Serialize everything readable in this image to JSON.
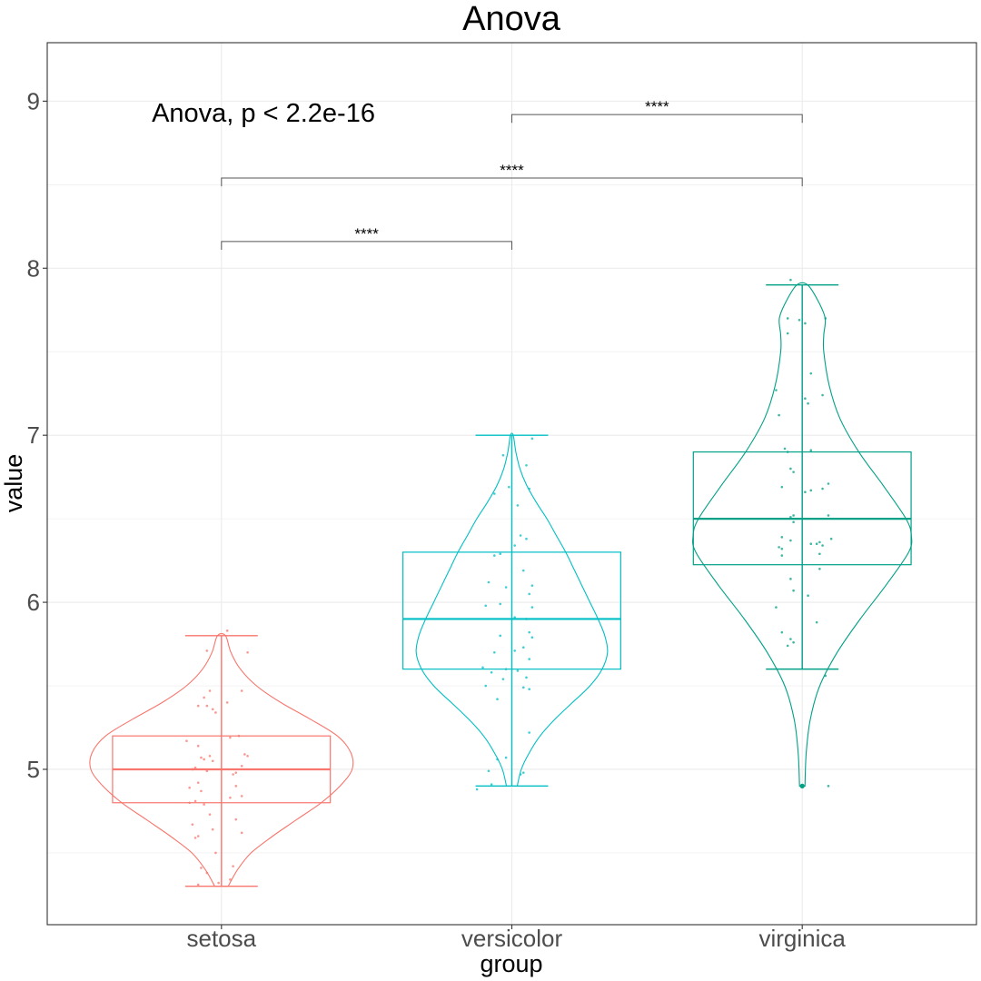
{
  "chart_data": {
    "type": "violin-box",
    "title": "Anova",
    "xlabel": "group",
    "ylabel": "value",
    "categories": [
      "setosa",
      "versicolor",
      "virginica"
    ],
    "ylim": [
      4.07,
      9.35
    ],
    "yticks": [
      5,
      6,
      7,
      8,
      9
    ],
    "grid": true,
    "colors": {
      "setosa": "#F8766D",
      "versicolor": "#00BFC4",
      "virginica": "#00A087"
    },
    "stat_label": {
      "text": "Anova, p < 2.2e-16",
      "x": 0.76,
      "y": 8.93
    },
    "boxes": [
      {
        "group": "setosa",
        "min": 4.3,
        "q1": 4.8,
        "median": 5.0,
        "q3": 5.2,
        "max": 5.8
      },
      {
        "group": "versicolor",
        "min": 4.9,
        "q1": 5.6,
        "median": 5.9,
        "q3": 6.3,
        "max": 7.0
      },
      {
        "group": "virginica",
        "min": 5.6,
        "q1": 6.225,
        "median": 6.5,
        "q3": 6.9,
        "max": 7.9
      }
    ],
    "outliers": [
      {
        "group": "virginica",
        "value": 4.9
      }
    ],
    "violins": [
      {
        "group": "setosa",
        "y": [
          4.3,
          4.4,
          4.5,
          4.6,
          4.7,
          4.8,
          4.9,
          5.0,
          5.1,
          5.2,
          5.3,
          5.4,
          5.5,
          5.6,
          5.7,
          5.8
        ],
        "density": [
          0.05,
          0.12,
          0.22,
          0.38,
          0.56,
          0.74,
          0.88,
          0.97,
          0.96,
          0.86,
          0.66,
          0.44,
          0.26,
          0.14,
          0.07,
          0.03
        ]
      },
      {
        "group": "versicolor",
        "y": [
          4.9,
          5.0,
          5.1,
          5.2,
          5.3,
          5.4,
          5.5,
          5.6,
          5.7,
          5.8,
          5.9,
          6.0,
          6.1,
          6.2,
          6.3,
          6.4,
          6.5,
          6.6,
          6.7,
          6.8,
          6.9,
          7.0
        ],
        "density": [
          0.04,
          0.07,
          0.13,
          0.21,
          0.32,
          0.45,
          0.58,
          0.67,
          0.71,
          0.69,
          0.64,
          0.58,
          0.52,
          0.46,
          0.4,
          0.33,
          0.26,
          0.18,
          0.11,
          0.06,
          0.03,
          0.01
        ]
      },
      {
        "group": "virginica",
        "y": [
          4.9,
          5.1,
          5.3,
          5.5,
          5.7,
          5.9,
          6.1,
          6.3,
          6.4,
          6.5,
          6.7,
          6.9,
          7.1,
          7.3,
          7.5,
          7.6,
          7.7,
          7.8,
          7.9
        ],
        "density": [
          0.02,
          0.03,
          0.06,
          0.13,
          0.26,
          0.43,
          0.62,
          0.79,
          0.81,
          0.77,
          0.6,
          0.42,
          0.28,
          0.2,
          0.16,
          0.16,
          0.17,
          0.12,
          0.04
        ]
      }
    ],
    "points": [
      {
        "group": "setosa",
        "values": [
          5.83,
          5.71,
          5.7,
          5.47,
          5.47,
          5.43,
          5.4,
          5.38,
          5.38,
          5.36,
          5.34,
          5.2,
          5.19,
          5.17,
          5.14,
          5.09,
          5.08,
          5.08,
          5.07,
          5.06,
          5.05,
          5.02,
          5.01,
          5.0,
          4.99,
          4.98,
          4.97,
          4.92,
          4.9,
          4.89,
          4.87,
          4.84,
          4.83,
          4.81,
          4.8,
          4.79,
          4.73,
          4.7,
          4.67,
          4.64,
          4.62,
          4.6,
          4.59,
          4.5,
          4.42,
          4.41,
          4.38,
          4.34,
          4.32,
          4.31
        ],
        "offsets": [
          0.02,
          -0.05,
          0.09,
          -0.04,
          0.07,
          -0.06,
          0.02,
          -0.08,
          -0.05,
          -0.03,
          -0.02,
          0.06,
          0.03,
          -0.12,
          -0.08,
          0.08,
          -0.04,
          0.09,
          -0.07,
          -0.06,
          -0.03,
          0.07,
          -0.09,
          -0.1,
          -0.05,
          0.05,
          0.04,
          -0.08,
          0.05,
          -0.11,
          -0.07,
          0.07,
          0.03,
          -0.09,
          -0.11,
          -0.06,
          -0.04,
          0.05,
          -0.1,
          -0.03,
          0.07,
          -0.08,
          -0.09,
          -0.02,
          0.04,
          -0.07,
          -0.05,
          0.03,
          -0.01,
          -0.08
        ]
      },
      {
        "group": "versicolor",
        "values": [
          6.98,
          6.88,
          6.82,
          6.69,
          6.68,
          6.65,
          6.58,
          6.4,
          6.38,
          6.34,
          6.29,
          6.28,
          6.19,
          6.12,
          6.1,
          6.09,
          6.05,
          5.99,
          5.98,
          5.97,
          5.91,
          5.9,
          5.82,
          5.8,
          5.79,
          5.73,
          5.71,
          5.7,
          5.66,
          5.61,
          5.6,
          5.59,
          5.58,
          5.55,
          5.54,
          5.5,
          5.49,
          5.48,
          5.42,
          5.22,
          5.07,
          5.06,
          4.99,
          4.98,
          4.97,
          4.91,
          4.88
        ],
        "offsets": [
          0.07,
          -0.03,
          0.05,
          -0.01,
          0.06,
          -0.06,
          0.02,
          0.03,
          0.05,
          0.01,
          -0.04,
          -0.06,
          0.04,
          -0.08,
          0.07,
          -0.02,
          0.06,
          -0.04,
          -0.09,
          0.07,
          0.01,
          0.05,
          0.06,
          -0.04,
          0.07,
          0.04,
          0.01,
          -0.06,
          0.06,
          -0.1,
          -0.02,
          0.02,
          -0.07,
          0.05,
          -0.03,
          -0.09,
          0.04,
          0.06,
          -0.05,
          0.06,
          -0.02,
          -0.05,
          -0.08,
          0.04,
          0.03,
          -0.07,
          -0.12
        ]
      },
      {
        "group": "virginica",
        "values": [
          7.93,
          7.7,
          7.7,
          7.69,
          7.67,
          7.61,
          7.37,
          7.27,
          7.24,
          7.22,
          7.19,
          7.12,
          6.92,
          6.91,
          6.9,
          6.8,
          6.78,
          6.71,
          6.69,
          6.68,
          6.67,
          6.66,
          6.52,
          6.52,
          6.51,
          6.48,
          6.39,
          6.38,
          6.37,
          6.36,
          6.35,
          6.35,
          6.34,
          6.33,
          6.32,
          6.29,
          6.28,
          6.2,
          6.14,
          6.07,
          6.04,
          5.97,
          5.88,
          5.82,
          5.78,
          5.76,
          5.74,
          5.56,
          4.9,
          4.9
        ],
        "offsets": [
          -0.04,
          -0.05,
          0.08,
          -0.01,
          0.01,
          -0.05,
          0.03,
          -0.09,
          0.07,
          0.01,
          0.02,
          -0.08,
          -0.06,
          0.03,
          -0.05,
          -0.04,
          -0.03,
          0.09,
          -0.07,
          0.07,
          0.03,
          0.01,
          -0.03,
          0.09,
          -0.04,
          -0.03,
          -0.07,
          0.1,
          -0.04,
          0.06,
          0.05,
          0.03,
          0.07,
          -0.08,
          -0.07,
          0.06,
          -0.07,
          0.06,
          -0.04,
          -0.03,
          0.02,
          -0.09,
          0.05,
          -0.07,
          -0.04,
          -0.03,
          -0.05,
          0.08,
          0.0,
          0.09
        ]
      }
    ],
    "comparisons": [
      {
        "from": "setosa",
        "to": "versicolor",
        "y": 8.16,
        "label": "****"
      },
      {
        "from": "setosa",
        "to": "virginica",
        "y": 8.54,
        "label": "****"
      },
      {
        "from": "versicolor",
        "to": "virginica",
        "y": 8.92,
        "label": "****"
      }
    ]
  }
}
